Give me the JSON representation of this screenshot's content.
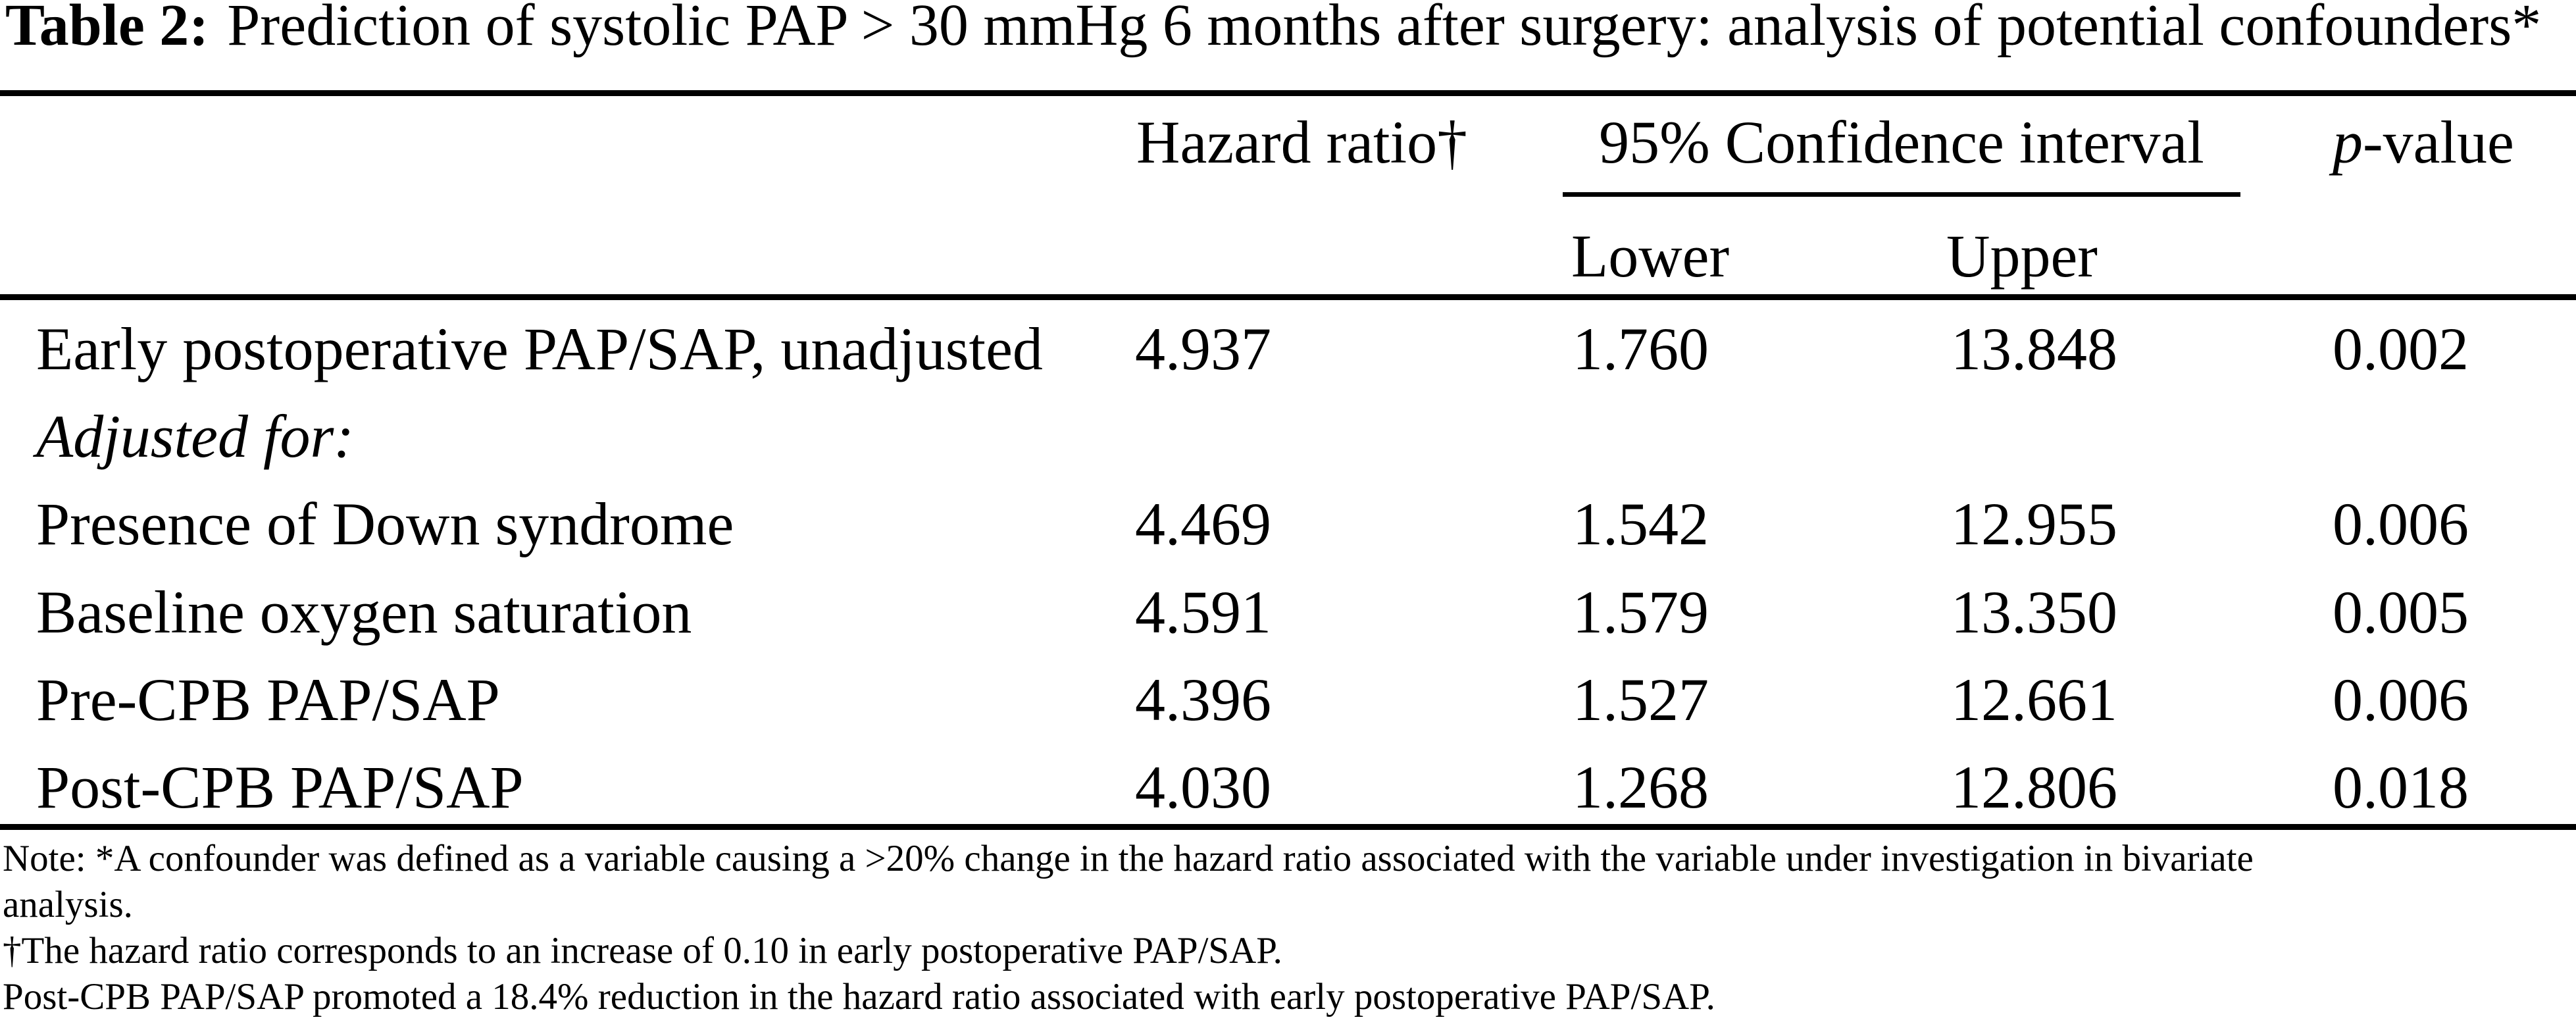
{
  "caption": {
    "label": "Table 2:",
    "text": "Prediction of systolic PAP > 30 mmHg 6 months after surgery: analysis of potential confounders*"
  },
  "table": {
    "col_headers": {
      "hazard_ratio": "Hazard ratio†",
      "confidence_interval": "95% Confidence interval",
      "lower": "Lower",
      "upper": "Upper",
      "p_value_italic": "p",
      "p_value_rest": "-value"
    },
    "rows": [
      {
        "label": "Early postoperative PAP/SAP, unadjusted",
        "hazard_ratio": "4.937",
        "ci_lower": "1.760",
        "ci_upper": "13.848",
        "p_value": "0.002"
      },
      {
        "label": "Adjusted for:",
        "hazard_ratio": "",
        "ci_lower": "",
        "ci_upper": "",
        "p_value": ""
      },
      {
        "label": "Presence of Down syndrome",
        "hazard_ratio": "4.469",
        "ci_lower": "1.542",
        "ci_upper": "12.955",
        "p_value": "0.006"
      },
      {
        "label": "Baseline oxygen saturation",
        "hazard_ratio": "4.591",
        "ci_lower": "1.579",
        "ci_upper": "13.350",
        "p_value": "0.005"
      },
      {
        "label": "Pre-CPB PAP/SAP",
        "hazard_ratio": "4.396",
        "ci_lower": "1.527",
        "ci_upper": "12.661",
        "p_value": "0.006"
      },
      {
        "label": "Post-CPB PAP/SAP",
        "hazard_ratio": "4.030",
        "ci_lower": "1.268",
        "ci_upper": "12.806",
        "p_value": "0.018"
      }
    ]
  },
  "footnotes": {
    "note_line1": "Note: *A confounder was defined as a variable causing a >20% change in the hazard ratio associated with the variable under investigation in bivariate",
    "note_line2": "analysis.",
    "dagger_note": "†The hazard ratio corresponds to an increase of 0.10 in early postoperative PAP/SAP.",
    "post_cpb_note": "Post-CPB PAP/SAP promoted a 18.4% reduction in the hazard ratio associated with early postoperative PAP/SAP."
  },
  "colors": {
    "text": "#000000",
    "background": "#ffffff",
    "rule": "#000000"
  }
}
